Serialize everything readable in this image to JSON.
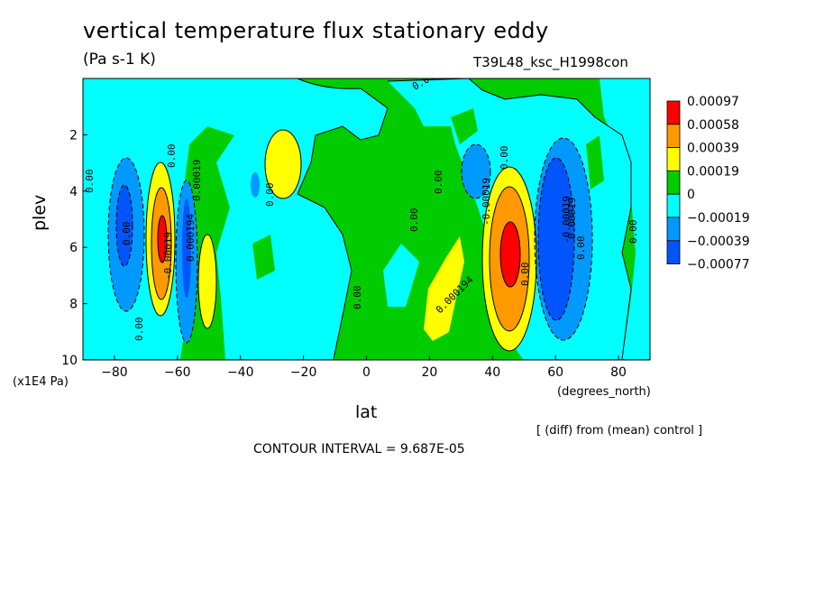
{
  "header": {
    "title": "vertical temperature flux stationary eddy",
    "units": "(Pa s-1 K)",
    "run": "T39L48_ksc_H1998con"
  },
  "axes": {
    "xlabel": "lat",
    "ylabel": "plev",
    "x_unit": "(degrees_north)",
    "y_unit": "(x1E4 Pa)"
  },
  "footer": {
    "diff": "[ (diff) from (mean) control ]",
    "contour_interval": "CONTOUR INTERVAL = 9.687E-05"
  },
  "colors": {
    "red": "#ff0000",
    "orange": "#ff9900",
    "yellow": "#ffff00",
    "green": "#00cc00",
    "cyan": "#00ffff",
    "mid_blue": "#0099ff",
    "blue": "#0055ff"
  },
  "chart_data": {
    "type": "contour",
    "x": {
      "range": [
        -90,
        90
      ],
      "ticks": [
        -80,
        -60,
        -40,
        -20,
        0,
        20,
        40,
        60,
        80
      ],
      "tick_labels": [
        "−80",
        "−60",
        "−40",
        "−20",
        "0",
        "20",
        "40",
        "60",
        "80"
      ]
    },
    "y": {
      "range": [
        0,
        10
      ],
      "inverted": true,
      "ticks": [
        2,
        4,
        6,
        8,
        10
      ],
      "tick_labels": [
        "2",
        "4",
        "6",
        "8",
        "10"
      ]
    },
    "legend": {
      "placement": "right",
      "levels": [
        {
          "label": "0.00097",
          "color": "#ff0000"
        },
        {
          "label": "0.00058",
          "color": "#ff9900"
        },
        {
          "label": "0.00039",
          "color": "#ffff00"
        },
        {
          "label": "0.00019",
          "color": "#00cc00"
        },
        {
          "label": "0",
          "color": "#00ffff"
        },
        {
          "label": "−0.00019",
          "color": "#0099ff"
        },
        {
          "label": "−0.00039",
          "color": "#0055ff"
        },
        {
          "label": "−0.00077",
          "color": null
        }
      ]
    },
    "features": [
      {
        "lat": -73,
        "plev": 5.5,
        "value": -0.00039
      },
      {
        "lat": -62,
        "plev": 5.9,
        "value": 0.00097
      },
      {
        "lat": -56,
        "plev": 6.3,
        "value": -0.00039
      },
      {
        "lat": -51,
        "plev": 7.0,
        "value": 0.00039
      },
      {
        "lat": -29,
        "plev": 3.0,
        "value": 0.00039
      },
      {
        "lat": 25,
        "plev": 7.9,
        "value": 0.00039
      },
      {
        "lat": 36,
        "plev": 3.5,
        "value": -0.00019
      },
      {
        "lat": 45,
        "plev": 6.4,
        "value": 0.00097
      },
      {
        "lat": 59,
        "plev": 6.2,
        "value": -0.00077
      }
    ],
    "contour_labels": [
      "0.00",
      "0.00",
      "0.00",
      "-0.00019",
      "0.000194",
      "0.00019",
      "0.00",
      "0.00",
      "0.00",
      "0.000194",
      "0.00",
      "-0.00019",
      "0.00",
      "0.00",
      "0.00019",
      "0.00",
      "0.00",
      "-0.00019",
      "0.00",
      "0.00"
    ]
  }
}
